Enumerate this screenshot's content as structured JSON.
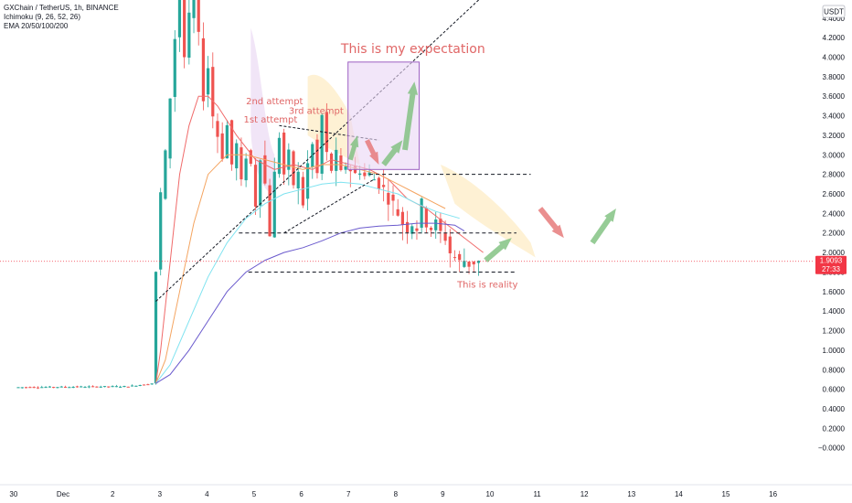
{
  "legend": {
    "symbol": "GXChain / TetherUS, 1h, BINANCE",
    "ichimoku": "Ichimoku (9, 26, 52, 26)",
    "ema": "EMA 20/50/100/200"
  },
  "annotations": {
    "expectation": "This is my expectation",
    "reality": "This is reality",
    "attempt1": "1st attempt",
    "attempt2": "2nd attempt",
    "attempt3": "3rd attempt"
  },
  "price_tag": {
    "price": "1.9093",
    "countdown": "27:33",
    "color": "#f23645"
  },
  "currency_unit": "USDT",
  "colors": {
    "up": "#26a69a",
    "down": "#ef5350",
    "ema20": "#f06a6a",
    "ema50": "#f4a460",
    "ema100": "#7fe3f0",
    "ema200": "#6a5acd",
    "arrow_up": "#7cbf7c",
    "arrow_down": "#e57373",
    "box": "#9c5fc1"
  },
  "chart_data": {
    "type": "candlestick",
    "y_ticks": [
      "4.4000",
      "4.2000",
      "4.0000",
      "3.8000",
      "3.6000",
      "3.4000",
      "3.2000",
      "3.0000",
      "2.8000",
      "2.6000",
      "2.4000",
      "2.2000",
      "2.0000",
      "1.8000",
      "1.6000",
      "1.4000",
      "1.2000",
      "1.0000",
      "0.8000",
      "0.6000",
      "0.4000",
      "0.2000",
      "−0.0000"
    ],
    "x_ticks": [
      "30",
      "Dec",
      "2",
      "3",
      "4",
      "5",
      "6",
      "7",
      "8",
      "9",
      "10",
      "11",
      "12",
      "13",
      "14",
      "15",
      "16"
    ],
    "ylim": [
      -0.08,
      4.7
    ],
    "close_path": [
      [
        0.0,
        0.62
      ],
      [
        2.4,
        0.63
      ],
      [
        2.9,
        0.66
      ],
      [
        3.0,
        1.8
      ],
      [
        3.1,
        2.6
      ],
      [
        3.2,
        3.0
      ],
      [
        3.3,
        3.6
      ],
      [
        3.4,
        4.2
      ],
      [
        3.5,
        4.6
      ],
      [
        3.6,
        4.0
      ],
      [
        3.7,
        4.4
      ],
      [
        3.8,
        4.8
      ],
      [
        3.9,
        4.2
      ],
      [
        4.0,
        3.6
      ],
      [
        4.1,
        3.9
      ],
      [
        4.2,
        3.4
      ],
      [
        4.3,
        3.2
      ],
      [
        4.4,
        3.0
      ],
      [
        4.5,
        3.3
      ],
      [
        4.6,
        2.9
      ],
      [
        4.7,
        3.1
      ],
      [
        4.8,
        2.7
      ],
      [
        4.9,
        3.0
      ],
      [
        5.0,
        2.9
      ],
      [
        5.1,
        2.5
      ],
      [
        5.2,
        3.0
      ],
      [
        5.3,
        2.7
      ],
      [
        5.4,
        2.2
      ],
      [
        5.5,
        2.8
      ],
      [
        5.6,
        3.2
      ],
      [
        5.7,
        2.8
      ],
      [
        5.8,
        3.0
      ],
      [
        5.9,
        2.7
      ],
      [
        6.0,
        2.8
      ],
      [
        6.1,
        2.5
      ],
      [
        6.2,
        2.9
      ],
      [
        6.3,
        3.1
      ],
      [
        6.4,
        2.8
      ],
      [
        6.5,
        3.4
      ],
      [
        6.6,
        3.0
      ],
      [
        6.7,
        2.85
      ],
      [
        6.8,
        3.0
      ],
      [
        6.9,
        2.8
      ],
      [
        7.0,
        2.9
      ],
      [
        7.1,
        2.85
      ],
      [
        7.2,
        2.8
      ],
      [
        7.3,
        2.85
      ],
      [
        7.4,
        2.78
      ],
      [
        7.5,
        2.8
      ],
      [
        7.6,
        2.75
      ],
      [
        7.7,
        2.7
      ],
      [
        7.8,
        2.65
      ],
      [
        7.9,
        2.55
      ],
      [
        8.0,
        2.5
      ],
      [
        8.1,
        2.4
      ],
      [
        8.2,
        2.3
      ],
      [
        8.3,
        2.25
      ],
      [
        8.4,
        2.3
      ],
      [
        8.5,
        2.25
      ],
      [
        8.6,
        2.5
      ],
      [
        8.7,
        2.3
      ],
      [
        8.8,
        2.25
      ],
      [
        8.9,
        2.3
      ],
      [
        9.0,
        2.2
      ],
      [
        9.1,
        2.15
      ],
      [
        9.2,
        2.0
      ],
      [
        9.3,
        1.95
      ],
      [
        9.4,
        1.9
      ],
      [
        9.5,
        1.92
      ],
      [
        9.6,
        1.88
      ],
      [
        9.7,
        1.9
      ],
      [
        9.75,
        1.91
      ]
    ],
    "series": [
      {
        "name": "EMA 20",
        "points": [
          [
            2.9,
            0.66
          ],
          [
            3.0,
            1.0
          ],
          [
            3.2,
            1.9
          ],
          [
            3.4,
            2.8
          ],
          [
            3.6,
            3.3
          ],
          [
            3.8,
            3.6
          ],
          [
            4.0,
            3.6
          ],
          [
            4.2,
            3.5
          ],
          [
            4.6,
            3.2
          ],
          [
            5.0,
            2.95
          ],
          [
            5.4,
            2.85
          ],
          [
            5.8,
            2.9
          ],
          [
            6.2,
            2.85
          ],
          [
            6.6,
            2.95
          ],
          [
            7.0,
            2.9
          ],
          [
            7.4,
            2.85
          ],
          [
            7.8,
            2.75
          ],
          [
            8.2,
            2.55
          ],
          [
            8.6,
            2.45
          ],
          [
            9.0,
            2.3
          ],
          [
            9.4,
            2.15
          ],
          [
            9.8,
            2.0
          ]
        ]
      },
      {
        "name": "EMA 50",
        "points": [
          [
            2.9,
            0.66
          ],
          [
            3.1,
            0.9
          ],
          [
            3.4,
            1.6
          ],
          [
            3.7,
            2.3
          ],
          [
            4.0,
            2.8
          ],
          [
            4.4,
            3.0
          ],
          [
            4.8,
            3.0
          ],
          [
            5.2,
            2.95
          ],
          [
            5.6,
            2.9
          ],
          [
            6.0,
            2.85
          ],
          [
            6.4,
            2.9
          ],
          [
            6.8,
            2.9
          ],
          [
            7.2,
            2.85
          ],
          [
            7.6,
            2.8
          ],
          [
            8.0,
            2.7
          ],
          [
            8.4,
            2.6
          ],
          [
            8.8,
            2.5
          ],
          [
            9.0,
            2.45
          ]
        ]
      },
      {
        "name": "EMA 100",
        "points": [
          [
            2.9,
            0.66
          ],
          [
            3.2,
            0.85
          ],
          [
            3.6,
            1.3
          ],
          [
            4.0,
            1.75
          ],
          [
            4.4,
            2.1
          ],
          [
            4.8,
            2.35
          ],
          [
            5.2,
            2.5
          ],
          [
            5.6,
            2.6
          ],
          [
            6.0,
            2.65
          ],
          [
            6.4,
            2.7
          ],
          [
            6.8,
            2.72
          ],
          [
            7.2,
            2.7
          ],
          [
            7.6,
            2.65
          ],
          [
            8.0,
            2.6
          ],
          [
            8.4,
            2.5
          ],
          [
            8.8,
            2.42
          ],
          [
            9.3,
            2.35
          ]
        ]
      },
      {
        "name": "EMA 200",
        "points": [
          [
            2.9,
            0.66
          ],
          [
            3.2,
            0.75
          ],
          [
            3.6,
            1.0
          ],
          [
            4.0,
            1.3
          ],
          [
            4.4,
            1.6
          ],
          [
            4.8,
            1.8
          ],
          [
            5.2,
            1.92
          ],
          [
            5.6,
            2.0
          ],
          [
            6.0,
            2.05
          ],
          [
            6.4,
            2.12
          ],
          [
            6.8,
            2.2
          ],
          [
            7.2,
            2.25
          ],
          [
            7.6,
            2.27
          ],
          [
            8.0,
            2.28
          ],
          [
            8.4,
            2.3
          ],
          [
            8.8,
            2.3
          ],
          [
            9.2,
            2.28
          ],
          [
            9.4,
            2.22
          ]
        ]
      }
    ]
  }
}
